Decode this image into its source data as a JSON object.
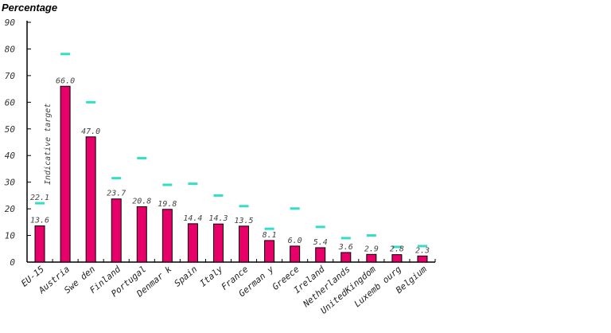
{
  "chart_data": {
    "type": "bar",
    "ylabel": "Percentage",
    "ylim": [
      0,
      90
    ],
    "yticks": [
      0,
      10,
      20,
      30,
      40,
      50,
      60,
      70,
      80,
      90
    ],
    "categories": [
      "EU-15",
      "Austria",
      "Swe den",
      "Finland",
      "Portugal",
      "Denmar k",
      "Spain",
      "Italy",
      "France",
      "German y",
      "Greece",
      "Ireland",
      "Netherlands",
      "UnitedKingdom",
      "Luxemb ourg",
      "Belgium"
    ],
    "series": [
      {
        "values": [
          13.6,
          66.0,
          47.0,
          23.7,
          20.8,
          19.8,
          14.4,
          14.3,
          13.5,
          8.1,
          6.0,
          5.4,
          3.6,
          2.9,
          2.8,
          2.3
        ]
      },
      {
        "name": "Indicative target",
        "values": [
          22.1,
          78.1,
          60.0,
          31.5,
          39.0,
          29.0,
          29.4,
          25.0,
          21.0,
          12.5,
          20.1,
          13.2,
          9.0,
          10.0,
          5.7,
          6.0
        ]
      }
    ],
    "value_labels": [
      "13.6",
      "66.0",
      "47.0",
      "23.7",
      "20.8",
      "19.8",
      "14.4",
      "14.3",
      "13.5",
      "8.1",
      "6.0",
      "5.4",
      "3.6",
      "2.9",
      "2.8",
      "2.3"
    ],
    "target_label_shown": "22.1",
    "annotation": "Indicative target",
    "colors": {
      "bar": "#e8006a",
      "target": "#33ddc8",
      "axis": "#000000"
    },
    "grid": false
  }
}
